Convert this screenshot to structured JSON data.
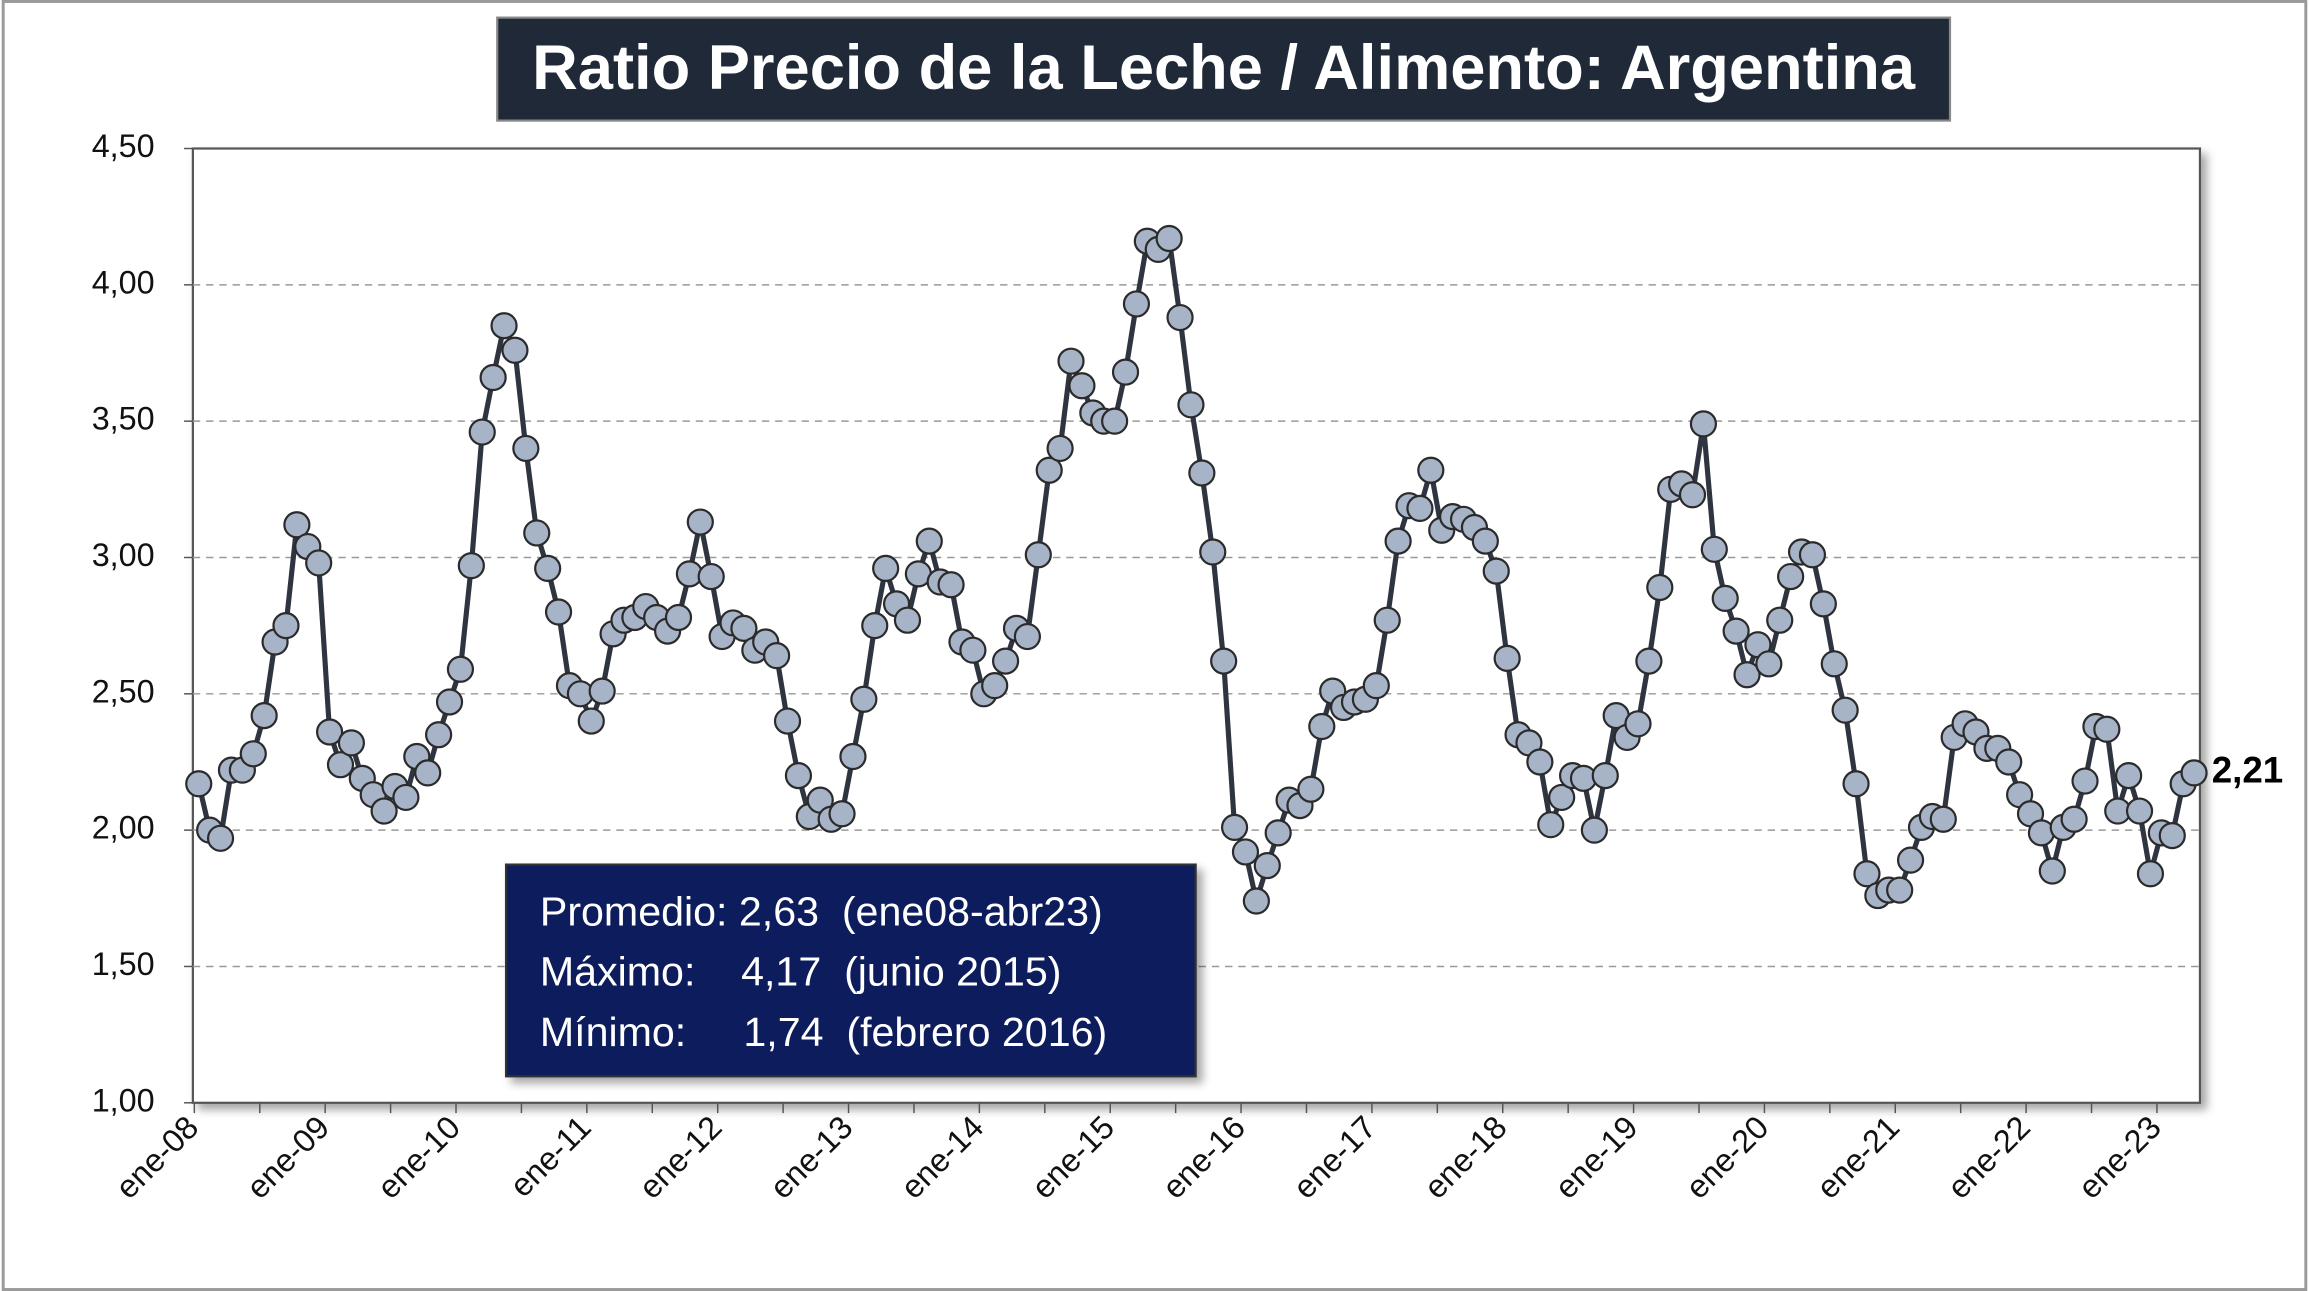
{
  "chart_data": {
    "type": "line",
    "title": "Ratio Precio de la Leche / Alimento: Argentina",
    "categories": [
      "ene-08",
      null,
      null,
      null,
      null,
      null,
      null,
      null,
      null,
      null,
      null,
      null,
      "ene-09",
      null,
      null,
      null,
      null,
      null,
      null,
      null,
      null,
      null,
      null,
      null,
      "ene-10",
      null,
      null,
      null,
      null,
      null,
      null,
      null,
      null,
      null,
      null,
      null,
      "ene-11",
      null,
      null,
      null,
      null,
      null,
      null,
      null,
      null,
      null,
      null,
      null,
      "ene-12",
      null,
      null,
      null,
      null,
      null,
      null,
      null,
      null,
      null,
      null,
      null,
      "ene-13",
      null,
      null,
      null,
      null,
      null,
      null,
      null,
      null,
      null,
      null,
      null,
      "ene-14",
      null,
      null,
      null,
      null,
      null,
      null,
      null,
      null,
      null,
      null,
      null,
      "ene-15",
      null,
      null,
      null,
      null,
      null,
      null,
      null,
      null,
      null,
      null,
      null,
      "ene-16",
      null,
      null,
      null,
      null,
      null,
      null,
      null,
      null,
      null,
      null,
      null,
      "ene-17",
      null,
      null,
      null,
      null,
      null,
      null,
      null,
      null,
      null,
      null,
      null,
      "ene-18",
      null,
      null,
      null,
      null,
      null,
      null,
      null,
      null,
      null,
      null,
      null,
      "ene-19",
      null,
      null,
      null,
      null,
      null,
      null,
      null,
      null,
      null,
      null,
      null,
      "ene-20",
      null,
      null,
      null,
      null,
      null,
      null,
      null,
      null,
      null,
      null,
      null,
      "ene-21",
      null,
      null,
      null,
      null,
      null,
      null,
      null,
      null,
      null,
      null,
      null,
      "ene-22",
      null,
      null,
      null,
      null,
      null,
      null,
      null,
      null,
      null,
      null,
      null,
      "ene-23",
      null,
      null,
      null
    ],
    "series": [
      {
        "color": "#2e3440",
        "marker_color": "#a7b4c8",
        "values": [
          2.17,
          2.0,
          1.97,
          2.22,
          2.22,
          2.28,
          2.42,
          2.69,
          2.75,
          3.12,
          3.04,
          2.98,
          2.36,
          2.24,
          2.32,
          2.19,
          2.13,
          2.07,
          2.16,
          2.12,
          2.27,
          2.21,
          2.35,
          2.47,
          2.59,
          2.97,
          3.46,
          3.66,
          3.85,
          3.76,
          3.4,
          3.09,
          2.96,
          2.8,
          2.53,
          2.5,
          2.4,
          2.51,
          2.72,
          2.77,
          2.78,
          2.82,
          2.78,
          2.73,
          2.78,
          2.94,
          3.13,
          2.93,
          2.71,
          2.76,
          2.74,
          2.66,
          2.69,
          2.64,
          2.4,
          2.2,
          2.05,
          2.11,
          2.04,
          2.06,
          2.27,
          2.48,
          2.75,
          2.96,
          2.83,
          2.77,
          2.94,
          3.06,
          2.91,
          2.9,
          2.69,
          2.66,
          2.5,
          2.53,
          2.62,
          2.74,
          2.71,
          3.01,
          3.32,
          3.4,
          3.72,
          3.63,
          3.53,
          3.5,
          3.5,
          3.68,
          3.93,
          4.16,
          4.13,
          4.17,
          3.88,
          3.56,
          3.31,
          3.02,
          2.62,
          2.01,
          1.92,
          1.74,
          1.87,
          1.99,
          2.11,
          2.09,
          2.15,
          2.38,
          2.51,
          2.45,
          2.47,
          2.48,
          2.53,
          2.77,
          3.06,
          3.19,
          3.18,
          3.32,
          3.1,
          3.15,
          3.14,
          3.11,
          3.06,
          2.95,
          2.63,
          2.35,
          2.32,
          2.25,
          2.02,
          2.12,
          2.2,
          2.19,
          2.0,
          2.2,
          2.42,
          2.34,
          2.39,
          2.62,
          2.89,
          3.25,
          3.27,
          3.23,
          3.49,
          3.03,
          2.85,
          2.73,
          2.57,
          2.68,
          2.61,
          2.77,
          2.93,
          3.02,
          3.01,
          2.83,
          2.61,
          2.44,
          2.17,
          1.84,
          1.76,
          1.78,
          1.78,
          1.89,
          2.01,
          2.05,
          2.04,
          2.34,
          2.39,
          2.36,
          2.3,
          2.3,
          2.25,
          2.13,
          2.06,
          1.99,
          1.85,
          2.01,
          2.04,
          2.18,
          2.38,
          2.37,
          2.07,
          2.2,
          2.07,
          1.84,
          1.99,
          1.98,
          2.17,
          2.21
        ],
        "value_labels": [
          null,
          null,
          null,
          null,
          null,
          null,
          null,
          null,
          null,
          null,
          null,
          null,
          null,
          null,
          null,
          null,
          null,
          null,
          null,
          null,
          null,
          null,
          null,
          null,
          null,
          null,
          null,
          null,
          null,
          null,
          null,
          null,
          null,
          null,
          null,
          null,
          null,
          null,
          null,
          null,
          null,
          null,
          null,
          null,
          null,
          null,
          null,
          null,
          null,
          null,
          null,
          null,
          null,
          null,
          null,
          null,
          null,
          null,
          null,
          null,
          null,
          null,
          null,
          null,
          null,
          null,
          null,
          null,
          null,
          null,
          null,
          null,
          null,
          null,
          null,
          null,
          null,
          null,
          null,
          null,
          null,
          null,
          null,
          null,
          null,
          null,
          null,
          null,
          null,
          null,
          null,
          null,
          null,
          null,
          null,
          null,
          null,
          null,
          null,
          null,
          null,
          null,
          null,
          null,
          null,
          null,
          null,
          null,
          null,
          null,
          null,
          null,
          null,
          null,
          null,
          null,
          null,
          null,
          null,
          null,
          null,
          null,
          null,
          null,
          null,
          null,
          null,
          null,
          null,
          null,
          null,
          null,
          null,
          null,
          null,
          null,
          null,
          null,
          null,
          null,
          null,
          null,
          null,
          null,
          null,
          null,
          null,
          null,
          null,
          null,
          null,
          null,
          null,
          null,
          null,
          null,
          null,
          null,
          null,
          null,
          null,
          null,
          null,
          null,
          null,
          null,
          null,
          null,
          null,
          null,
          null,
          null,
          null,
          null,
          null,
          null,
          null,
          null,
          null,
          null,
          null,
          null,
          null,
          "2,21"
        ]
      }
    ],
    "ylim": [
      1.0,
      4.5
    ],
    "yticks": [
      {
        "value": 1.0,
        "label": "1,00"
      },
      {
        "value": 1.5,
        "label": "1,50"
      },
      {
        "value": 2.0,
        "label": "2,00"
      },
      {
        "value": 2.5,
        "label": "2,50"
      },
      {
        "value": 3.0,
        "label": "3,00"
      },
      {
        "value": 3.5,
        "label": "3,50"
      },
      {
        "value": 4.0,
        "label": "4,00"
      },
      {
        "value": 4.5,
        "label": "4,50"
      }
    ],
    "grid": true,
    "annotations": [
      "Promedio: 2,63  (ene08-abr23)",
      "Máximo:    4,17  (junio 2015)",
      "Mínimo:     1,74  (febrero 2016)"
    ]
  }
}
